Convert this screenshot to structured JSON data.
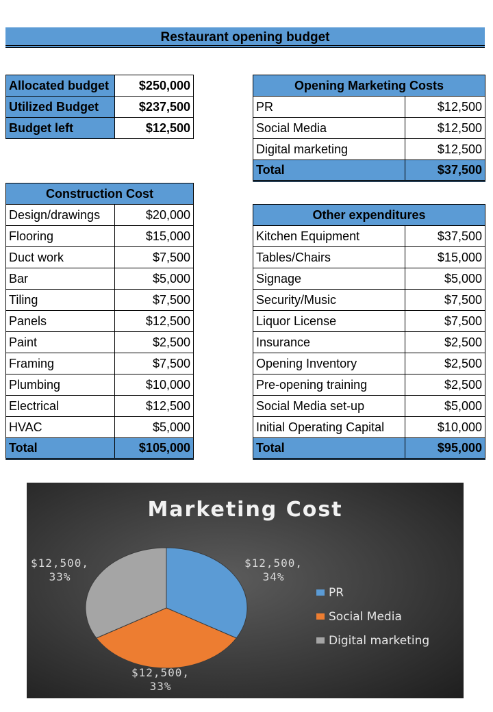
{
  "title": "Restaurant opening budget",
  "budget": {
    "rows": [
      {
        "label": "Allocated budget",
        "value": "$250,000"
      },
      {
        "label": "Utilized Budget",
        "value": "$237,500"
      },
      {
        "label": "Budget left",
        "value": "$12,500"
      }
    ]
  },
  "construction": {
    "header": "Construction Cost",
    "rows": [
      {
        "label": "Design/drawings",
        "value": "$20,000"
      },
      {
        "label": "Flooring",
        "value": "$15,000"
      },
      {
        "label": "Duct work",
        "value": "$7,500"
      },
      {
        "label": "Bar",
        "value": "$5,000"
      },
      {
        "label": "Tiling",
        "value": "$7,500"
      },
      {
        "label": "Panels",
        "value": "$12,500"
      },
      {
        "label": "Paint",
        "value": "$2,500"
      },
      {
        "label": "Framing",
        "value": "$7,500"
      },
      {
        "label": "Plumbing",
        "value": "$10,000"
      },
      {
        "label": "Electrical",
        "value": "$12,500"
      },
      {
        "label": "HVAC",
        "value": "$5,000"
      }
    ],
    "total_label": "Total",
    "total_value": "$105,000"
  },
  "marketing": {
    "header": "Opening Marketing Costs",
    "rows": [
      {
        "label": "PR",
        "value": "$12,500"
      },
      {
        "label": "Social Media",
        "value": "$12,500"
      },
      {
        "label": "Digital marketing",
        "value": "$12,500"
      }
    ],
    "total_label": "Total",
    "total_value": "$37,500"
  },
  "other": {
    "header": "Other expenditures",
    "rows": [
      {
        "label": "Kitchen Equipment",
        "value": "$37,500"
      },
      {
        "label": "Tables/Chairs",
        "value": "$15,000"
      },
      {
        "label": "Signage",
        "value": "$5,000"
      },
      {
        "label": "Security/Music",
        "value": "$7,500"
      },
      {
        "label": "Liquor License",
        "value": "$7,500"
      },
      {
        "label": "Insurance",
        "value": "$2,500"
      },
      {
        "label": "Opening Inventory",
        "value": "$2,500"
      },
      {
        "label": "Pre-opening  training",
        "value": "$2,500"
      },
      {
        "label": "Social Media set-up",
        "value": "$5,000"
      },
      {
        "label": "Initial Operating Capital",
        "value": "$10,000"
      }
    ],
    "total_label": "Total",
    "total_value": "$95,000"
  },
  "chart_data": {
    "type": "pie",
    "title": "Marketing Cost",
    "categories": [
      "PR",
      "Social Media",
      "Digital marketing"
    ],
    "values": [
      12500,
      12500,
      12500
    ],
    "data_labels": [
      {
        "value": "$12,500,",
        "percent": "34%"
      },
      {
        "value": "$12,500,",
        "percent": "33%"
      },
      {
        "value": "$12,500,",
        "percent": "33%"
      }
    ],
    "colors": [
      "#5b9bd5",
      "#ed7d31",
      "#a5a5a5"
    ],
    "legend_position": "right"
  }
}
